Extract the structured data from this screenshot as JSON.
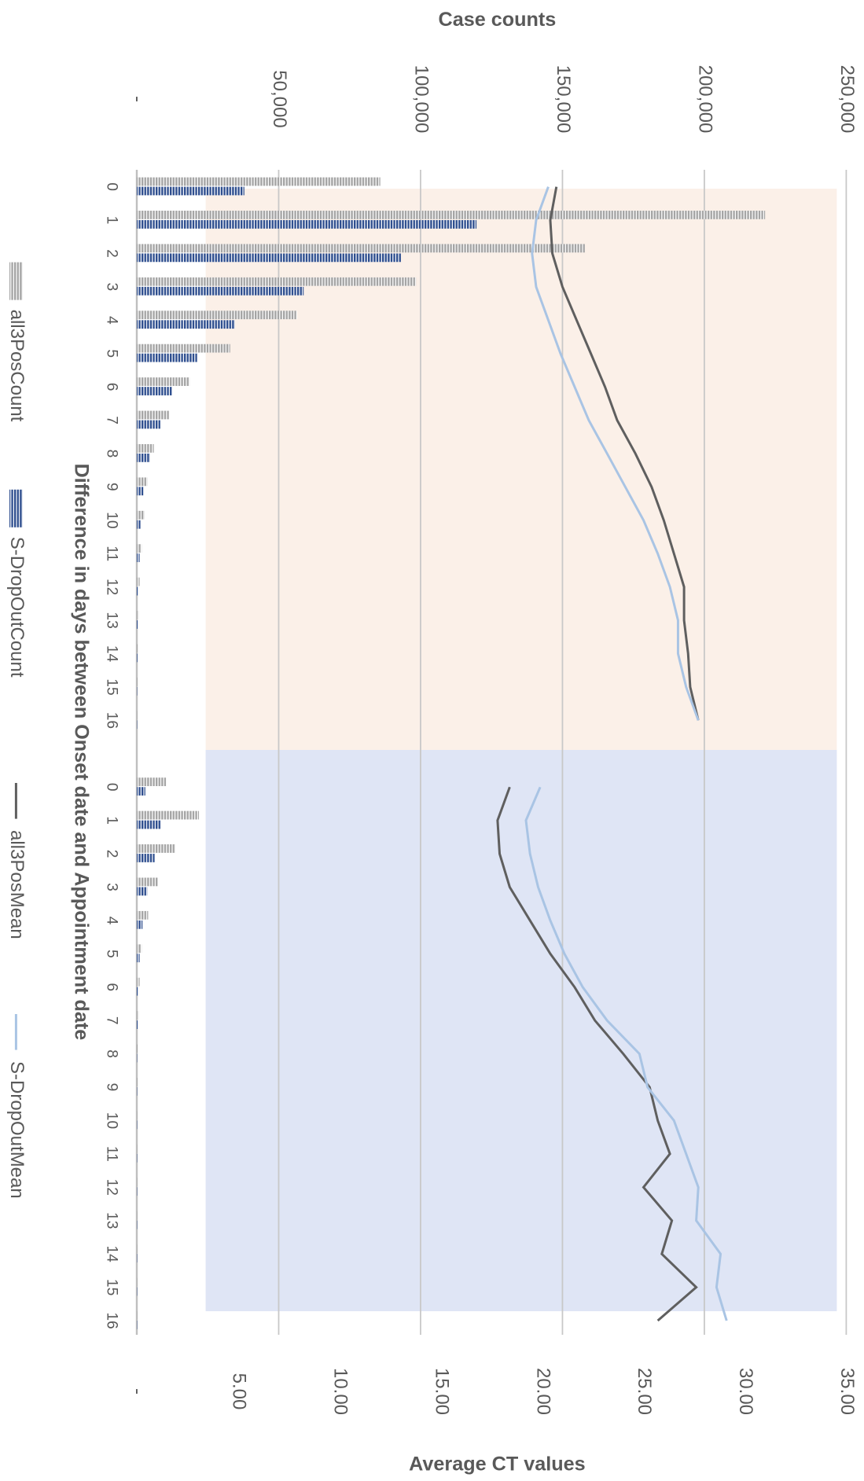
{
  "chart_data": {
    "type": "bar",
    "orientation": "horizontal",
    "xlabel": "Difference in days between Onset date and Appointment date",
    "ylabel": "Case counts",
    "y2label": "Average CT values",
    "categories": [
      0,
      1,
      2,
      3,
      4,
      5,
      6,
      7,
      8,
      9,
      10,
      11,
      12,
      13,
      14,
      15,
      16,
      null,
      0,
      1,
      2,
      3,
      4,
      5,
      6,
      7,
      8,
      9,
      10,
      11,
      12,
      13,
      14,
      15,
      16
    ],
    "ylim": [
      0,
      250000
    ],
    "yticks": [
      {
        "value": 0,
        "label": "-"
      },
      {
        "value": 50000,
        "label": "50,000"
      },
      {
        "value": 100000,
        "label": "100,000"
      },
      {
        "value": 150000,
        "label": "150,000"
      },
      {
        "value": 200000,
        "label": "200,000"
      },
      {
        "value": 250000,
        "label": "250,000"
      }
    ],
    "y2lim": [
      0,
      35
    ],
    "y2ticks": [
      {
        "value": 0,
        "label": "-"
      },
      {
        "value": 5,
        "label": "5.00"
      },
      {
        "value": 10,
        "label": "10.00"
      },
      {
        "value": 15,
        "label": "15.00"
      },
      {
        "value": 20,
        "label": "20.00"
      },
      {
        "value": 25,
        "label": "25.00"
      },
      {
        "value": 30,
        "label": "30.00"
      },
      {
        "value": 35,
        "label": "35.00"
      }
    ],
    "grid": true,
    "legend": "left",
    "series": [
      {
        "name": "all3PosCount",
        "type": "bar",
        "color": "#a5a5a5",
        "values": [
          85800,
          221400,
          157900,
          98400,
          56500,
          32900,
          18600,
          11600,
          6000,
          3700,
          2700,
          1700,
          1000,
          700,
          400,
          200,
          100,
          null,
          10300,
          21900,
          13600,
          7600,
          4000,
          1700,
          1000,
          700,
          300,
          200,
          100,
          100,
          100,
          100,
          100,
          100,
          100
        ]
      },
      {
        "name": "S-DropOutCount",
        "type": "bar",
        "color": "#2f4f8f",
        "values": [
          37900,
          119700,
          93100,
          58800,
          34600,
          21300,
          12600,
          8300,
          4700,
          2300,
          1300,
          1000,
          500,
          300,
          200,
          100,
          100,
          null,
          3000,
          8600,
          6300,
          3700,
          2000,
          1000,
          500,
          300,
          100,
          100,
          100,
          100,
          100,
          100,
          100,
          100,
          100
        ]
      },
      {
        "name": "all3PosMean",
        "type": "line",
        "axis": "y2",
        "color": "#5f5f5f",
        "values": [
          20.7,
          20.4,
          20.5,
          21.0,
          21.7,
          22.4,
          23.1,
          23.7,
          24.6,
          25.4,
          26.0,
          26.5,
          27.0,
          27.0,
          27.2,
          27.3,
          27.7,
          null,
          18.4,
          17.8,
          17.9,
          18.4,
          19.4,
          20.4,
          21.6,
          22.6,
          24.0,
          25.3,
          25.7,
          26.3,
          25.0,
          26.4,
          25.9,
          27.6,
          25.7
        ]
      },
      {
        "name": "S-DropOutMean",
        "type": "line",
        "axis": "y2",
        "color": "#a9c4e4",
        "values": [
          20.3,
          19.7,
          19.5,
          19.7,
          20.3,
          20.9,
          21.6,
          22.3,
          23.2,
          24.1,
          25.0,
          25.7,
          26.3,
          26.7,
          26.7,
          27.1,
          27.7,
          null,
          19.9,
          19.2,
          19.4,
          19.8,
          20.4,
          21.1,
          22.0,
          23.2,
          24.8,
          25.2,
          26.5,
          27.1,
          27.7,
          27.6,
          28.8,
          28.6,
          29.1
        ]
      }
    ]
  }
}
